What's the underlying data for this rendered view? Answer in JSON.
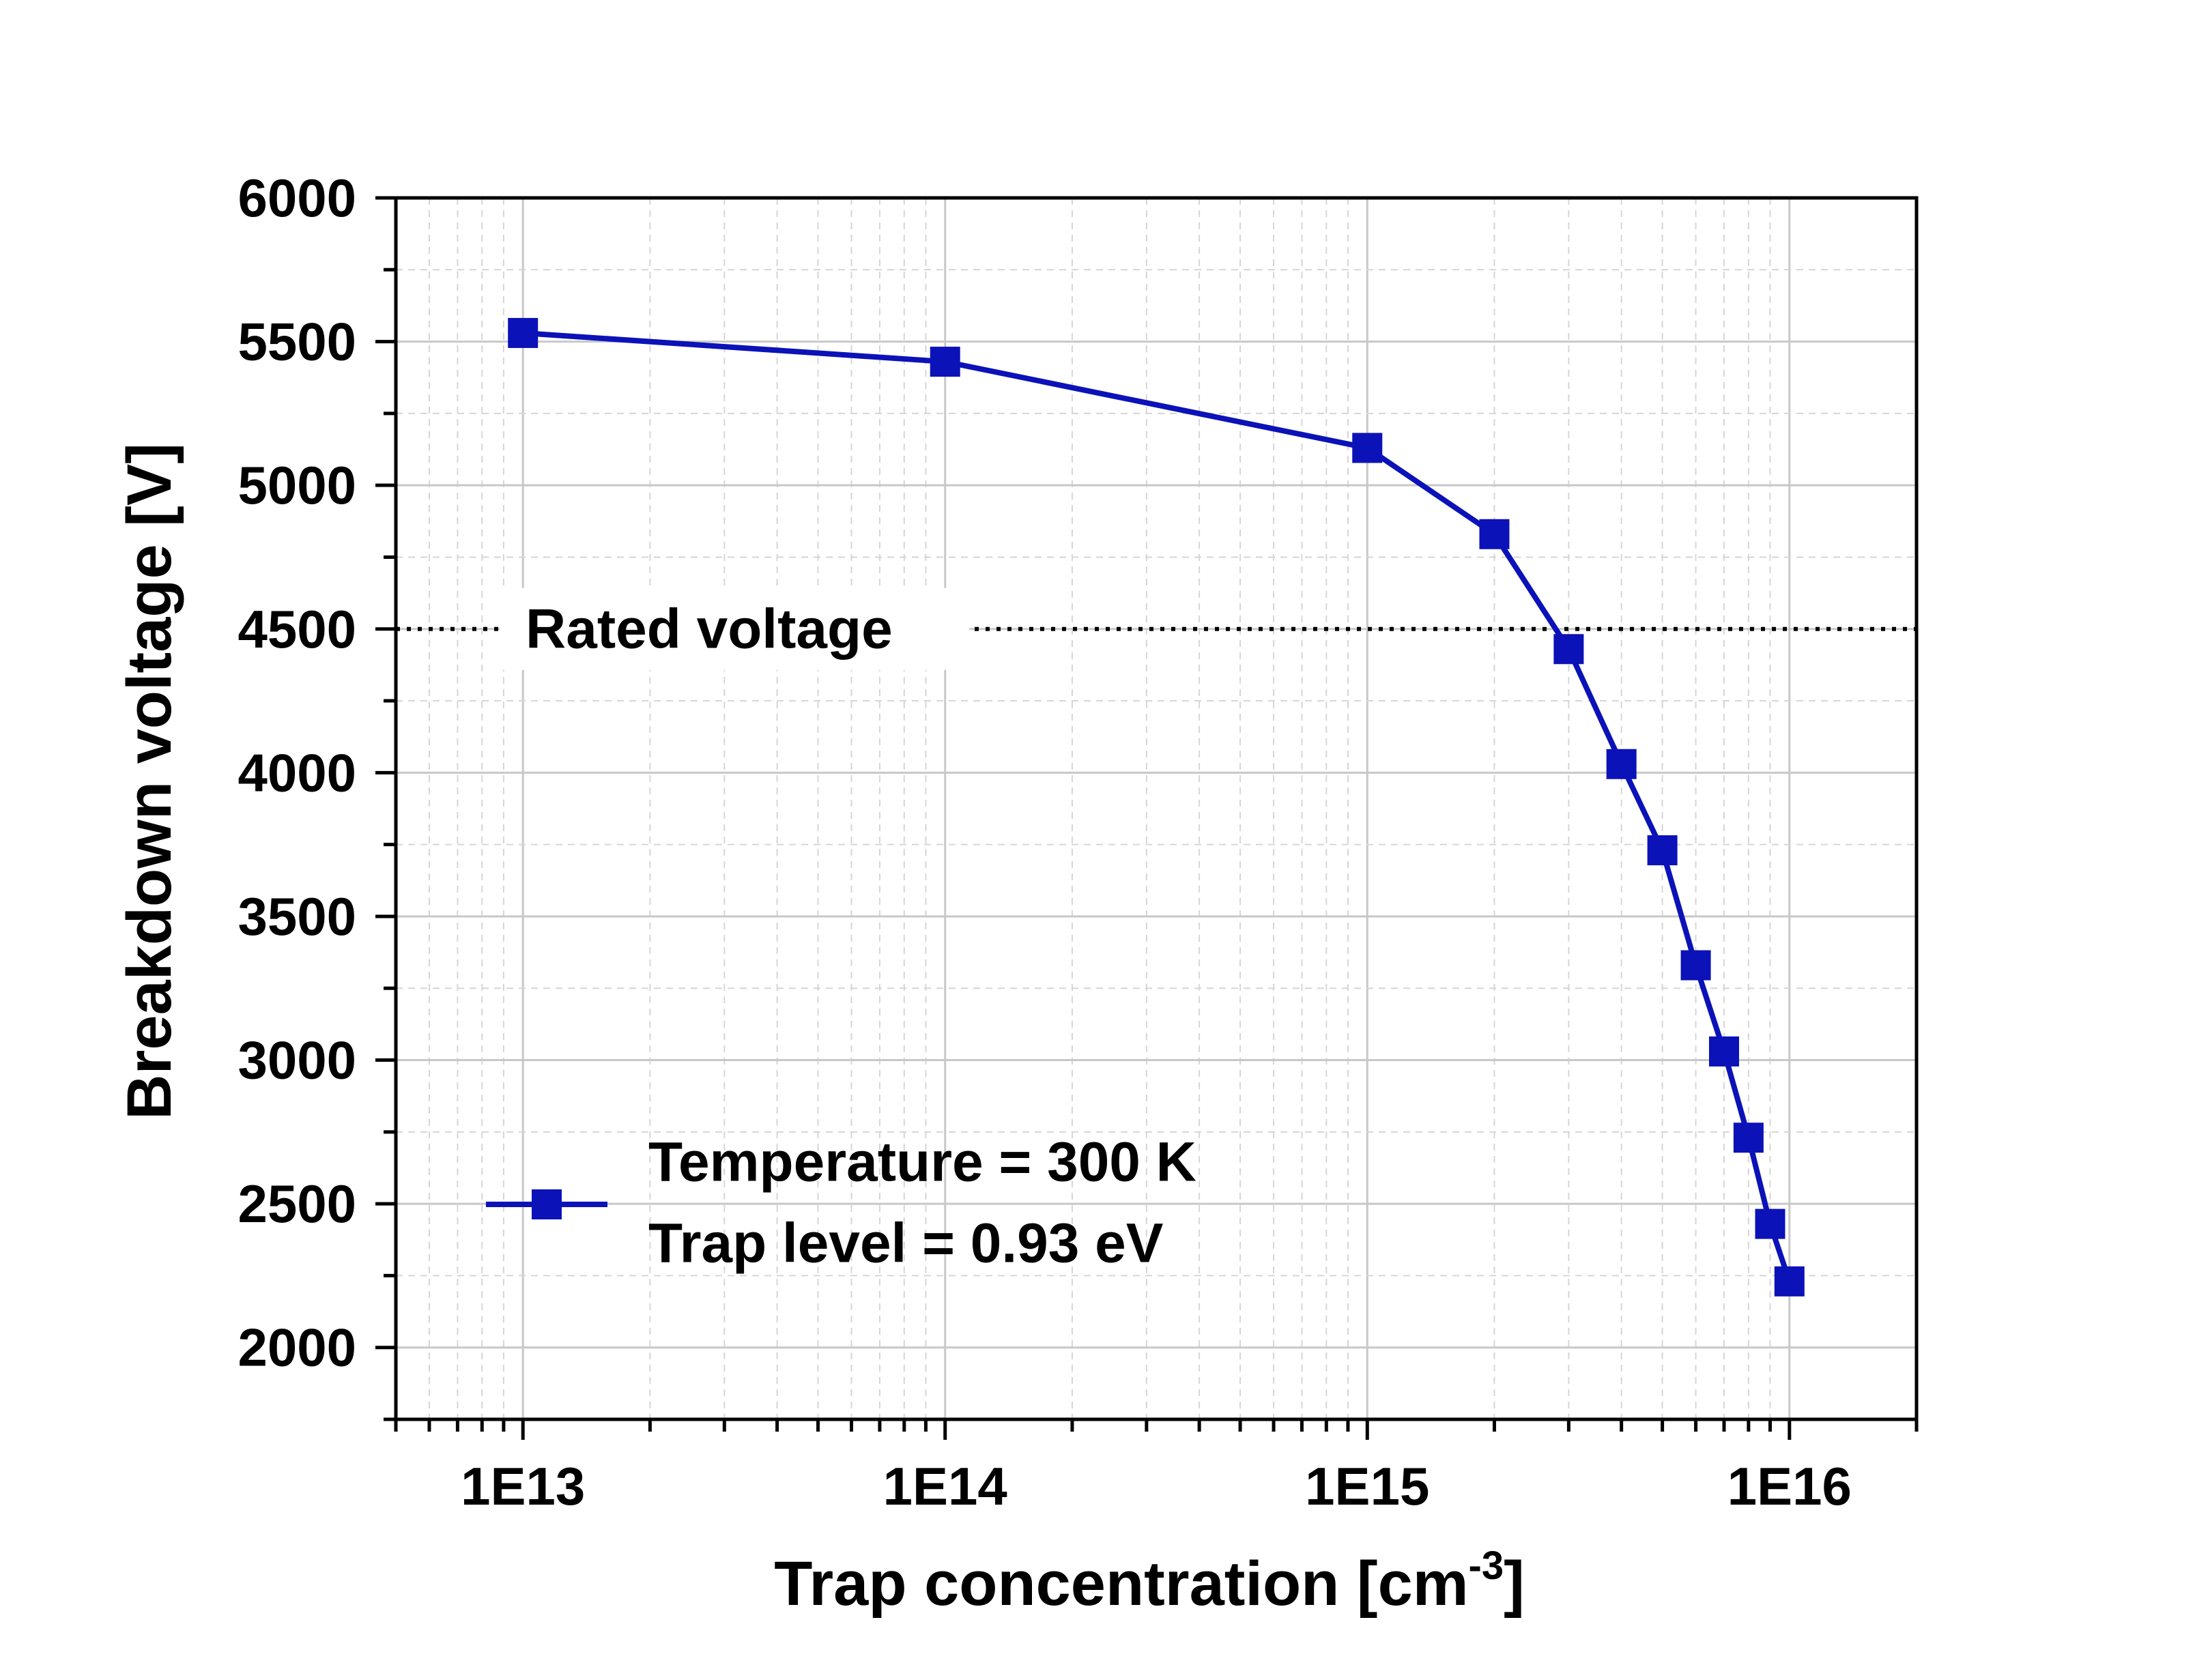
{
  "chart_data": {
    "type": "line",
    "xscale": "log",
    "x": [
      10000000000000.0,
      100000000000000.0,
      1000000000000000.0,
      2000000000000000.0,
      3000000000000000.0,
      4000000000000000.0,
      5000000000000000.0,
      6000000000000000.0,
      7000000000000000.0,
      8000000000000000.0,
      9000000000000000.0,
      1e+16
    ],
    "series": [
      {
        "values": [
          5530,
          5430,
          5130,
          4830,
          4430,
          4030,
          3730,
          3330,
          3030,
          2730,
          2430,
          2230
        ],
        "color": "#0b12b8",
        "marker": "square"
      }
    ],
    "xlim": [
      5000000000000.0,
      2e+16
    ],
    "ylim": [
      1750,
      6000
    ],
    "xticks": [
      10000000000000.0,
      100000000000000.0,
      1000000000000000.0,
      1e+16
    ],
    "xtick_labels": [
      "1E13",
      "1E14",
      "1E15",
      "1E16"
    ],
    "yticks": [
      2000,
      2500,
      3000,
      3500,
      4000,
      4500,
      5000,
      5500,
      6000
    ],
    "ytick_labels": [
      "2000",
      "2500",
      "3000",
      "3500",
      "4000",
      "4500",
      "5000",
      "5500",
      "6000"
    ],
    "xlabel": "Trap concentration [cm",
    "xlabel_sup": "-3",
    "xlabel_end": "]",
    "ylabel": "Breakdown voltage [V]",
    "grid": true,
    "reference_line": {
      "y": 4500,
      "label": "Rated voltage",
      "style": "dotted"
    },
    "legend": {
      "position": "bottom-left",
      "lines": [
        "Temperature = 300 K",
        "Trap level = 0.93 eV"
      ]
    }
  }
}
